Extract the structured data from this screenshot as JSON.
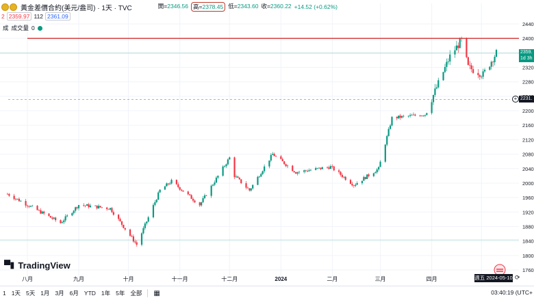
{
  "header": {
    "title": "黃金差價合約(美元/盎司) · 1天 · TVC",
    "ohlc": [
      {
        "label": "開",
        "value": "2346.56"
      },
      {
        "label": "高",
        "value": "2378.45"
      },
      {
        "label": "低",
        "value": "2343.60"
      },
      {
        "label": "收",
        "value": "2360.22"
      }
    ],
    "change": "+14.52 (+0.62%)",
    "row2": {
      "qty": "2",
      "sell": "2359.97",
      "spread": "112",
      "buy": "2361.09"
    },
    "row3": {
      "label1": "成",
      "label2": "成交量",
      "value": "0"
    }
  },
  "price_tags": {
    "last": "2359.",
    "countdown": "1d 3h",
    "dashed": "2231."
  },
  "crosshair_date": "週五 2024-05-10",
  "logo_text": "TradingView",
  "footer": {
    "ranges": [
      "1",
      "1天",
      "5天",
      "1月",
      "3月",
      "6月",
      "YTD",
      "1年",
      "5年",
      "全部"
    ],
    "clock": "03:40:19 (UTC+"
  },
  "colors": {
    "up": "#089981",
    "down": "#f23645",
    "resistance_line": "#d32f2f",
    "grid": "#f0f3fa"
  },
  "chart_data": {
    "type": "candlestick",
    "symbol": "TVC:GOLD",
    "interval": "1D",
    "y_ticks": [
      2440,
      2400,
      2360,
      2320,
      2280,
      2240,
      2200,
      2160,
      2120,
      2080,
      2040,
      2000,
      1960,
      1920,
      1880,
      1840,
      1800,
      1760
    ],
    "ylim": [
      1750,
      2460
    ],
    "x_ticks": [
      "八月",
      "九月",
      "十月",
      "十一月",
      "十二月",
      "2024",
      "二月",
      "三月",
      "四月",
      "五月"
    ],
    "horizontal_line": 2400,
    "last_price_line": 2359,
    "dashed_line": 2231,
    "lower_line": 1843,
    "keypoints": [
      {
        "date": "2023-07-20",
        "close": 1970
      },
      {
        "date": "2023-08-21",
        "close": 1890
      },
      {
        "date": "2023-09-01",
        "close": 1940
      },
      {
        "date": "2023-09-20",
        "close": 1930
      },
      {
        "date": "2023-10-06",
        "close": 1830
      },
      {
        "date": "2023-10-20",
        "close": 1980
      },
      {
        "date": "2023-10-27",
        "close": 2005
      },
      {
        "date": "2023-11-13",
        "close": 1940
      },
      {
        "date": "2023-12-01",
        "close": 2070
      },
      {
        "date": "2023-12-04",
        "close": 2020
      },
      {
        "date": "2023-12-13",
        "close": 1980
      },
      {
        "date": "2023-12-27",
        "close": 2080
      },
      {
        "date": "2024-01-10",
        "close": 2030
      },
      {
        "date": "2024-01-31",
        "close": 2045
      },
      {
        "date": "2024-02-14",
        "close": 1995
      },
      {
        "date": "2024-02-29",
        "close": 2040
      },
      {
        "date": "2024-03-08",
        "close": 2180
      },
      {
        "date": "2024-03-28",
        "close": 2190
      },
      {
        "date": "2024-04-12",
        "close": 2350
      },
      {
        "date": "2024-04-19",
        "close": 2395
      },
      {
        "date": "2024-04-23",
        "close": 2320
      },
      {
        "date": "2024-05-02",
        "close": 2300
      },
      {
        "date": "2024-05-10",
        "close": 2360
      }
    ]
  }
}
